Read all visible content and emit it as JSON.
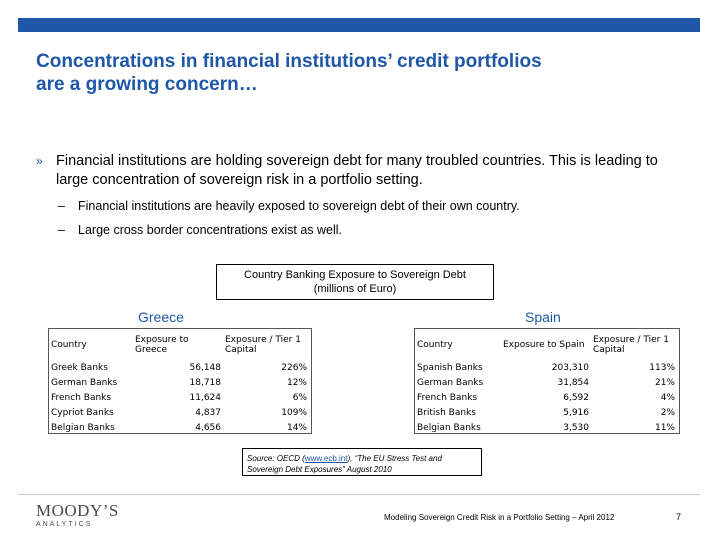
{
  "slide": {
    "title_line1": "Concentrations in financial institutions’ credit portfolios",
    "title_line2": "are a growing concern…",
    "bullet_marker": "»",
    "bullet_main": "Financial institutions are holding sovereign debt for many troubled countries.  This is leading to large concentration of sovereign risk in a portfolio setting.",
    "sub_dash": "–",
    "sub_bullets": [
      "Financial institutions are heavily exposed  to sovereign debt of their own country.",
      "Large cross border concentrations exist as well."
    ]
  },
  "exposure": {
    "title_line1": "Country Banking Exposure to Sovereign Debt",
    "title_line2": "(millions of Euro)",
    "greece": {
      "label": "Greece",
      "headers": [
        "Country",
        "Exposure to Greece",
        "Exposure  / Tier 1 Capital"
      ],
      "rows": [
        [
          "Greek Banks",
          "56,148",
          "226%"
        ],
        [
          "German Banks",
          "18,718",
          "12%"
        ],
        [
          "French Banks",
          "11,624",
          "6%"
        ],
        [
          "Cypriot Banks",
          "4,837",
          "109%"
        ],
        [
          "Belgian Banks",
          "4,656",
          "14%"
        ]
      ]
    },
    "spain": {
      "label": "Spain",
      "headers": [
        "Country",
        "Exposure to Spain",
        "Exposure  / Tier 1 Capital"
      ],
      "rows": [
        [
          "Spanish Banks",
          "203,310",
          "113%"
        ],
        [
          "German Banks",
          "31,854",
          "21%"
        ],
        [
          "French Banks",
          "6,592",
          "4%"
        ],
        [
          "British Banks",
          "5,916",
          "2%"
        ],
        [
          "Belgian Banks",
          "3,530",
          "11%"
        ]
      ]
    },
    "source_prefix": "Source: OECD (",
    "source_link": "www.ecb.int",
    "source_suffix": "), “The EU Stress Test and",
    "source_line2": "Sovereign Debt Exposures” August 2010"
  },
  "footer": {
    "logo_main": "MOODY’S",
    "logo_sub": "ANALYTICS",
    "text": "Modeling Sovereign Credit Risk in a Portfolio Setting – April 2012",
    "page": "7"
  },
  "colors": {
    "accent": "#1f57a8",
    "title": "#1f57a8"
  }
}
